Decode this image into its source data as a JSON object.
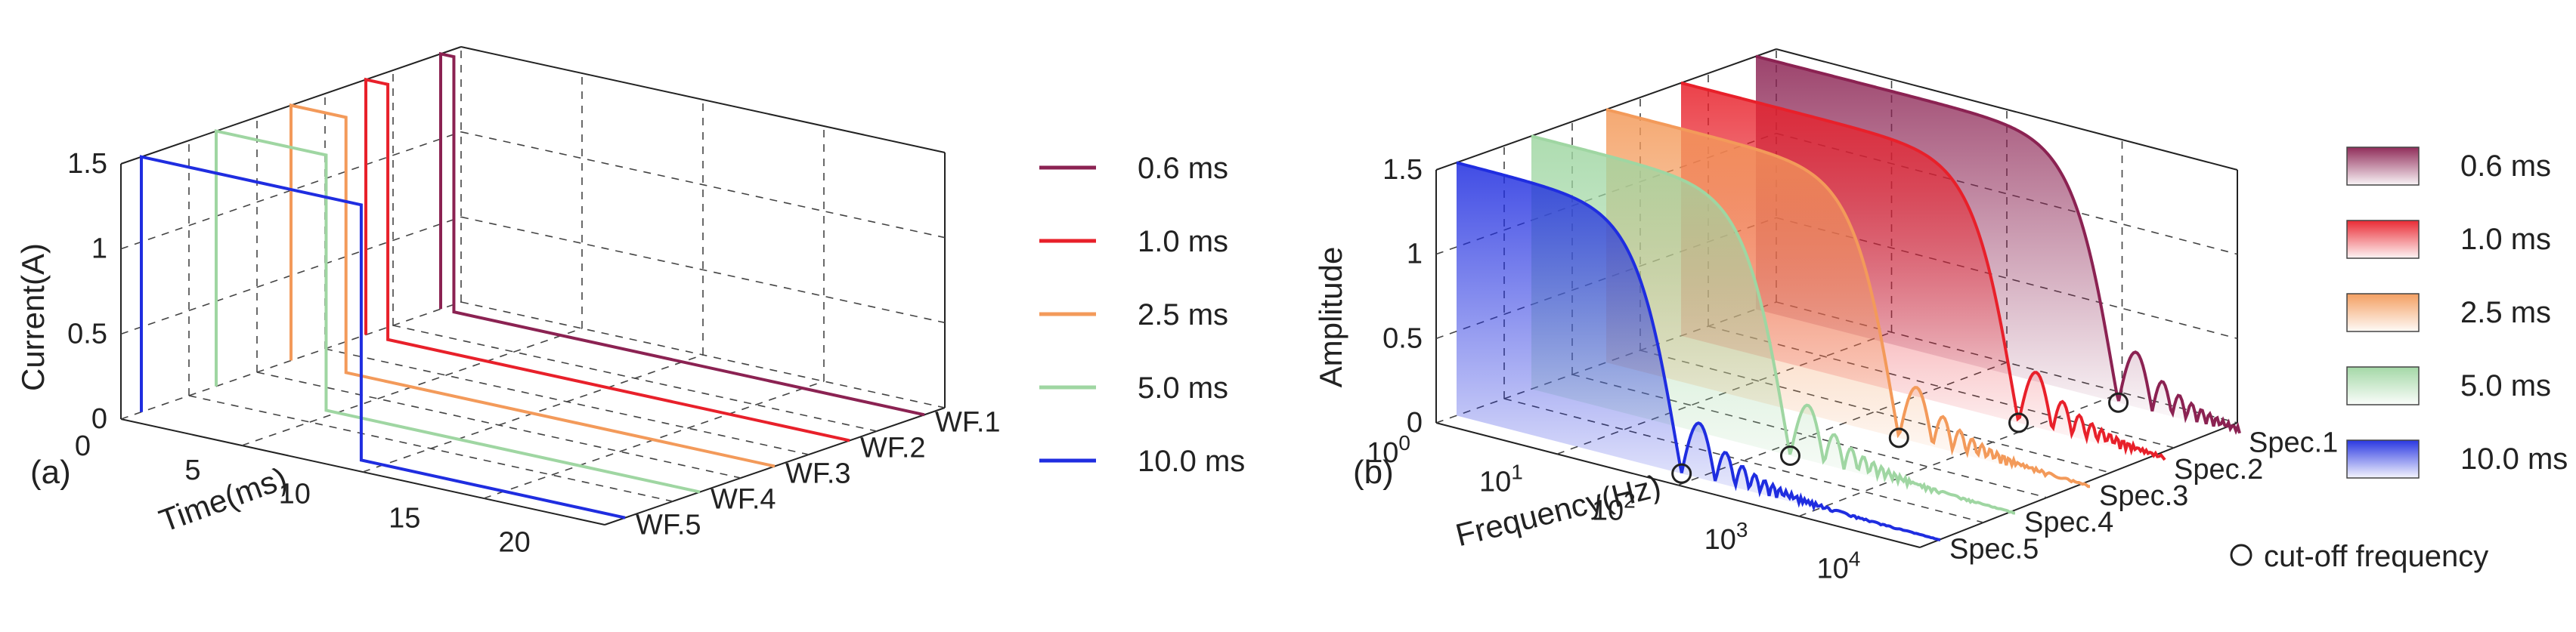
{
  "chart_data": [
    {
      "type": "line",
      "panel_label": "(a)",
      "ylabel": "Current(A)",
      "xlabel": "Time(ms)",
      "ylim": [
        0,
        1.5
      ],
      "y_ticks": [
        "0",
        "0.5",
        "1",
        "1.5"
      ],
      "x_ticks": [
        "0",
        "5",
        "10",
        "15",
        "20"
      ],
      "depth_labels": [
        "WF.1",
        "WF.2",
        "WF.3",
        "WF.4",
        "WF.5"
      ],
      "series": [
        {
          "name": "0.6 ms",
          "pulse_ms": 0.6,
          "amplitude": 1.5,
          "color": "#8B2252"
        },
        {
          "name": "1.0 ms",
          "pulse_ms": 1.0,
          "amplitude": 1.5,
          "color": "#E8202A"
        },
        {
          "name": "2.5 ms",
          "pulse_ms": 2.5,
          "amplitude": 1.5,
          "color": "#F39A5A"
        },
        {
          "name": "5.0 ms",
          "pulse_ms": 5.0,
          "amplitude": 1.5,
          "color": "#9FD6A2"
        },
        {
          "name": "10.0 ms",
          "pulse_ms": 10.0,
          "amplitude": 1.5,
          "color": "#1F2DE0"
        }
      ]
    },
    {
      "type": "area",
      "panel_label": "(b)",
      "ylabel": "Amplitude",
      "xlabel": "Frequency(Hz)",
      "ylim": [
        0,
        1.5
      ],
      "y_ticks": [
        "0",
        "0.5",
        "1",
        "1.5"
      ],
      "x_ticks": [
        {
          "base": "10",
          "exp": "0"
        },
        {
          "base": "10",
          "exp": "1"
        },
        {
          "base": "10",
          "exp": "2"
        },
        {
          "base": "10",
          "exp": "3"
        },
        {
          "base": "10",
          "exp": "4"
        }
      ],
      "depth_labels": [
        "Spec.1",
        "Spec.2",
        "Spec.3",
        "Spec.4",
        "Spec.5"
      ],
      "cutoff_label": "cut-off frequency",
      "series": [
        {
          "name": "0.6 ms",
          "color": "#8B2252",
          "cutoff_hz": 1667
        },
        {
          "name": "1.0 ms",
          "color": "#E8202A",
          "cutoff_hz": 1000
        },
        {
          "name": "2.5 ms",
          "color": "#F39A5A",
          "cutoff_hz": 400
        },
        {
          "name": "5.0 ms",
          "color": "#9FD6A2",
          "cutoff_hz": 200
        },
        {
          "name": "10.0 ms",
          "color": "#1F2DE0",
          "cutoff_hz": 100
        }
      ]
    }
  ]
}
